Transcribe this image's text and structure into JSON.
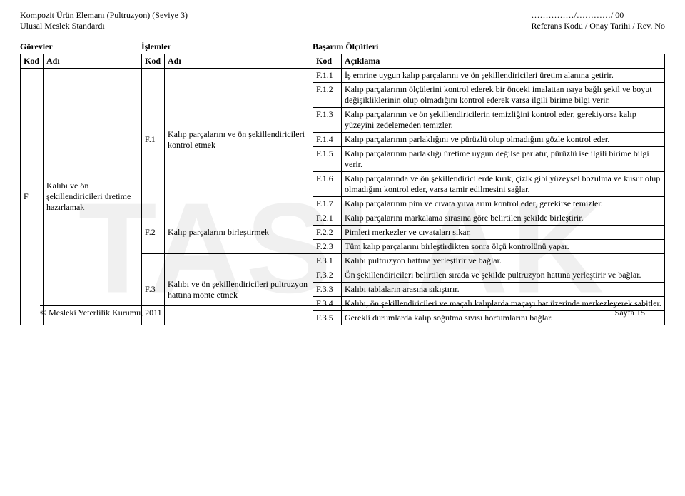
{
  "header": {
    "left1": "Kompozit Ürün Elemanı (Pultruzyon) (Seviye 3)",
    "left2": "Ulusal Meslek Standardı",
    "right1": "……………/…………/ 00",
    "right2": "Referans Kodu / Onay Tarihi / Rev. No"
  },
  "section": {
    "gorevler": "Görevler",
    "islemler": "İşlemler",
    "basarim": "Başarım Ölçütleri"
  },
  "thead": {
    "kod": "Kod",
    "adi": "Adı",
    "aciklama": "Açıklama"
  },
  "gorev": {
    "kod": "F",
    "adi": "Kalıbı ve ön şekillendiricileri üretime hazırlamak"
  },
  "islem": {
    "f1": {
      "kod": "F.1",
      "adi": "Kalıp parçalarını ve ön şekillendiricileri kontrol etmek"
    },
    "f2": {
      "kod": "F.2",
      "adi": "Kalıp parçalarını birleştirmek"
    },
    "f3": {
      "kod": "F.3",
      "adi": "Kalıbı ve ön şekillendiricileri pultruzyon hattına monte etmek"
    }
  },
  "rows": {
    "r1": {
      "kod": "F.1.1",
      "txt": "İş emrine uygun kalıp parçalarını ve ön şekillendiricileri üretim alanına getirir."
    },
    "r2": {
      "kod": "F.1.2",
      "txt": "Kalıp parçalarının ölçülerini kontrol ederek bir önceki imalattan ısıya bağlı şekil ve boyut değişikliklerinin olup olmadığını kontrol ederek varsa ilgili birime bilgi verir."
    },
    "r3": {
      "kod": "F.1.3",
      "txt": "Kalıp parçalarının ve ön şekillendiricilerin temizliğini kontrol eder, gerekiyorsa kalıp yüzeyini zedelemeden temizler."
    },
    "r4": {
      "kod": "F.1.4",
      "txt": "Kalıp parçalarının parlaklığını ve pürüzlü olup olmadığını gözle kontrol eder."
    },
    "r5": {
      "kod": "F.1.5",
      "txt": "Kalıp parçalarının parlaklığı üretime uygun değilse parlatır, pürüzlü ise ilgili birime bilgi verir."
    },
    "r6": {
      "kod": "F.1.6",
      "txt": "Kalıp parçalarında ve ön şekillendiricilerde kırık, çizik gibi yüzeysel bozulma ve kusur olup olmadığını kontrol eder, varsa tamir edilmesini sağlar."
    },
    "r7": {
      "kod": "F.1.7",
      "txt": "Kalıp parçalarının pim ve cıvata yuvalarını kontrol eder, gerekirse temizler."
    },
    "r8": {
      "kod": "F.2.1",
      "txt": "Kalıp parçalarını markalama sırasına göre belirtilen şekilde birleştirir."
    },
    "r9": {
      "kod": "F.2.2",
      "txt": "Pimleri merkezler ve cıvataları sıkar."
    },
    "r10": {
      "kod": "F.2.3",
      "txt": "Tüm kalıp parçalarını birleştirdikten sonra ölçü kontrolünü yapar."
    },
    "r11": {
      "kod": "F.3.1",
      "txt": "Kalıbı pultruzyon hattına yerleştirir ve bağlar."
    },
    "r12": {
      "kod": "F.3.2",
      "txt": "Ön şekillendiricileri belirtilen sırada ve şekilde pultruzyon hattına yerleştirir ve bağlar."
    },
    "r13": {
      "kod": "F.3.3",
      "txt": "Kalıbı tablaların arasına sıkıştırır."
    },
    "r14": {
      "kod": "F.3.4",
      "txt": "Kalıbı, ön şekillendiricileri ve maçalı kalıplarda maçayı hat üzerinde merkezleyerek sabitler."
    },
    "r15": {
      "kod": "F.3.5",
      "txt": "Gerekli durumlarda kalıp soğutma sıvısı hortumlarını bağlar."
    }
  },
  "footer": {
    "left": "© Mesleki Yeterlilik Kurumu, 2011",
    "right": "Sayfa 15"
  },
  "watermark": "TASLAK"
}
